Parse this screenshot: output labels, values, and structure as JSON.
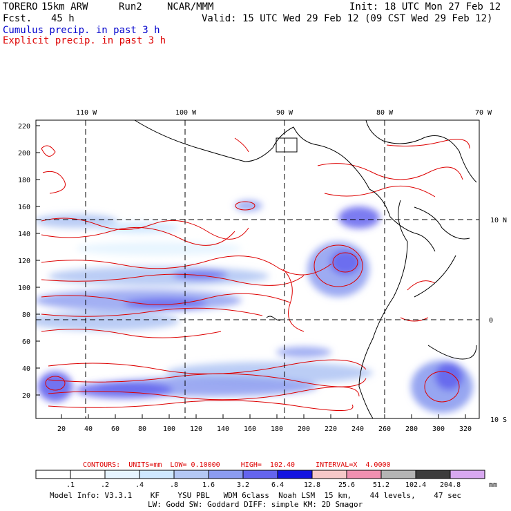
{
  "header": {
    "model": "TORERO",
    "resolution": "15km ARW",
    "run": "Run2",
    "org": "NCAR/MMM",
    "init": "Init: 18 UTC Mon 27 Feb 12",
    "fcst_label": "Fcst.",
    "fcst_value": "45 h",
    "valid": "Valid: 15 UTC Wed 29 Feb 12 (09 CST Wed 29 Feb 12)",
    "cumulus": "Cumulus precip. in past 3 h",
    "explicit": "Explicit precip. in past 3 h"
  },
  "map": {
    "top_lon_labels": [
      "110 W",
      "100 W",
      "90 W",
      "80 W",
      "70 W"
    ],
    "right_lat_labels": [
      "10 N",
      "0",
      "10 S"
    ],
    "y_ticks": [
      "220",
      "200",
      "180",
      "160",
      "140",
      "120",
      "100",
      "80",
      "60",
      "40",
      "20"
    ],
    "x_ticks": [
      "20",
      "40",
      "60",
      "80",
      "100",
      "120",
      "140",
      "160",
      "180",
      "200",
      "220",
      "240",
      "260",
      "280",
      "300",
      "320"
    ],
    "colors": {
      "explicit_contour": "#dd0000",
      "coast": "#000000",
      "grid": "#000000"
    }
  },
  "legend": {
    "contours_label": "CONTOURS:  UNITS=mm  LOW= 0.10000     HIGH=  102.40     INTERVAL=X  4.0000",
    "colorbar_unit": "mm",
    "colorbar_labels": [
      ".1",
      ".2",
      ".4",
      ".8",
      "1.6",
      "3.2",
      "6.4",
      "12.8",
      "25.6",
      "51.2",
      "102.4",
      "204.8"
    ],
    "colorbar_colors": [
      "#ffffff",
      "#ffffff",
      "#e6f4ff",
      "#cfe8ff",
      "#b4c8f4",
      "#8c9cf0",
      "#6464ee",
      "#1414e0",
      "#f6c8c8",
      "#f090b0",
      "#b4b4b4",
      "#3c3c3c",
      "#d8a8f0"
    ]
  },
  "footer": {
    "line1": "Model Info: V3.3.1    KF    YSU PBL   WDM 6class  Noah LSM  15 km,    44 levels,    47 sec",
    "line2": "LW: Godd SW: Goddard DIFF: simple KM: 2D Smagor"
  }
}
